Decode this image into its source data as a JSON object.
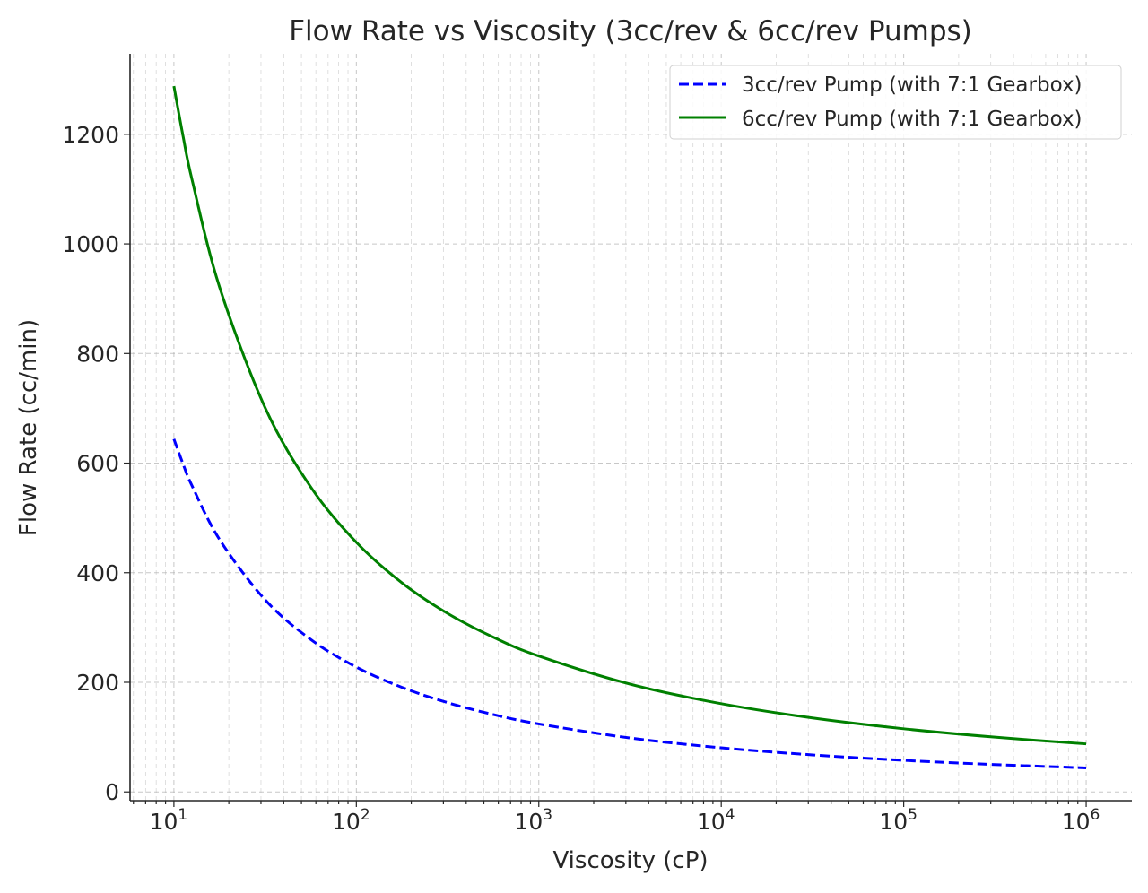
{
  "chart_data": {
    "type": "line",
    "title": "Flow Rate vs Viscosity (3cc/rev & 6cc/rev Pumps)",
    "xlabel": "Viscosity (cP)",
    "ylabel": "Flow Rate (cc/min)",
    "xscale": "log",
    "xlim": [
      5.75,
      1780000
    ],
    "ylim": [
      -16,
      1347
    ],
    "xticks": [
      10,
      100,
      1000,
      10000,
      100000,
      1000000
    ],
    "xtick_labels": [
      {
        "base": "10",
        "exp": "1"
      },
      {
        "base": "10",
        "exp": "2"
      },
      {
        "base": "10",
        "exp": "3"
      },
      {
        "base": "10",
        "exp": "4"
      },
      {
        "base": "10",
        "exp": "5"
      },
      {
        "base": "10",
        "exp": "6"
      }
    ],
    "yticks": [
      0,
      200,
      400,
      600,
      800,
      1000,
      1200
    ],
    "ytick_labels": [
      "0",
      "200",
      "400",
      "600",
      "800",
      "1000",
      "1200"
    ],
    "grid": true,
    "legend_position": "top-right",
    "x": [
      10,
      11.22,
      12.59,
      17.78,
      31.62,
      56.23,
      100,
      177.8,
      316.2,
      562.3,
      1000,
      3162,
      10000,
      31623,
      100000,
      316228,
      1000000
    ],
    "series": [
      {
        "name": "3cc/rev Pump (with 7:1 Gearbox)",
        "color": "#0000ff",
        "style": "dashed",
        "values": [
          644,
          598.6,
          558.2,
          460.8,
          350.6,
          278.2,
          227.7,
          190.8,
          162.9,
          141.2,
          124.0,
          98.4,
          80.5,
          67.5,
          57.6,
          49.9,
          43.8
        ]
      },
      {
        "name": "6cc/rev Pump (with 7:1 Gearbox)",
        "color": "#008000",
        "style": "solid",
        "values": [
          1288,
          1197.1,
          1116.4,
          921.6,
          701.1,
          556.4,
          455.4,
          381.6,
          325.8,
          282.4,
          247.9,
          196.7,
          161.0,
          134.9,
          115.2,
          99.9,
          87.6
        ]
      }
    ]
  }
}
